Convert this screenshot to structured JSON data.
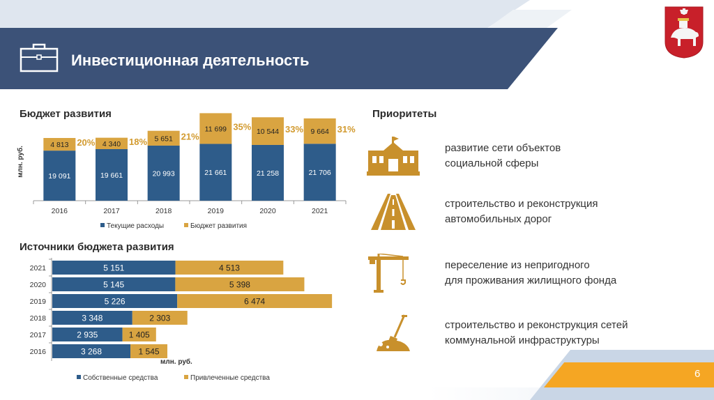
{
  "header": {
    "title": "Инвестиционная деятельность"
  },
  "colors": {
    "header_bg": "#3c5278",
    "blue_series": "#2e5c8a",
    "gold_series": "#d9a441",
    "percent_text": "#d29a2e",
    "footer_orange": "#f5a623"
  },
  "budget": {
    "title": "Бюджет развития",
    "unit": "млн. руб.",
    "legend": [
      "Текущие расходы",
      "Бюджет развития"
    ]
  },
  "sources": {
    "title": "Источники бюджета развития",
    "unit": "млн. руб.",
    "legend": [
      "Собственные средства",
      "Привлеченные средства"
    ]
  },
  "priorities": {
    "title": "Приоритеты",
    "items": [
      {
        "icon": "building-icon",
        "text": "развитие сети объектов\nсоциальной сферы"
      },
      {
        "icon": "road-icon",
        "text": "строительство и реконструкция\nавтомобильных дорог"
      },
      {
        "icon": "crane-icon",
        "text": "переселение из непригодного\nдля проживания жилищного фонда"
      },
      {
        "icon": "shovel-icon",
        "text": "строительство и реконструкция сетей\nкоммунальной инфраструктуры"
      }
    ]
  },
  "footer": {
    "page_number": "6"
  },
  "chart_data": [
    {
      "type": "bar",
      "stacked": true,
      "title": "Бюджет развития",
      "ylabel": "млн. руб.",
      "categories": [
        "2016",
        "2017",
        "2018",
        "2019",
        "2020",
        "2021"
      ],
      "series": [
        {
          "name": "Текущие расходы",
          "values": [
            19091,
            19661,
            20993,
            21661,
            21258,
            21706
          ],
          "labels": [
            "19 091",
            "19 661",
            "20 993",
            "21 661",
            "21 258",
            "21 706"
          ]
        },
        {
          "name": "Бюджет развития",
          "values": [
            4813,
            4340,
            5651,
            11699,
            10544,
            9664
          ],
          "labels": [
            "4 813",
            "4 340",
            "5 651",
            "11 699",
            "10 544",
            "9 664"
          ]
        }
      ],
      "share_labels": [
        "20%",
        "18%",
        "21%",
        "35%",
        "33%",
        "31%"
      ],
      "legend": "bottom"
    },
    {
      "type": "bar",
      "orientation": "horizontal",
      "stacked": true,
      "title": "Источники бюджета развития",
      "xlabel": "млн. руб.",
      "categories": [
        "2021",
        "2020",
        "2019",
        "2018",
        "2017",
        "2016"
      ],
      "series": [
        {
          "name": "Собственные средства",
          "values": [
            5151,
            5145,
            5226,
            3348,
            2935,
            3268
          ],
          "labels": [
            "5 151",
            "5 145",
            "5 226",
            "3 348",
            "2 935",
            "3 268"
          ]
        },
        {
          "name": "Привлеченные средства",
          "values": [
            4513,
            5398,
            6474,
            2303,
            1405,
            1545
          ],
          "labels": [
            "4 513",
            "5 398",
            "6 474",
            "2 303",
            "1 405",
            "1 545"
          ]
        }
      ],
      "legend": "bottom"
    }
  ]
}
